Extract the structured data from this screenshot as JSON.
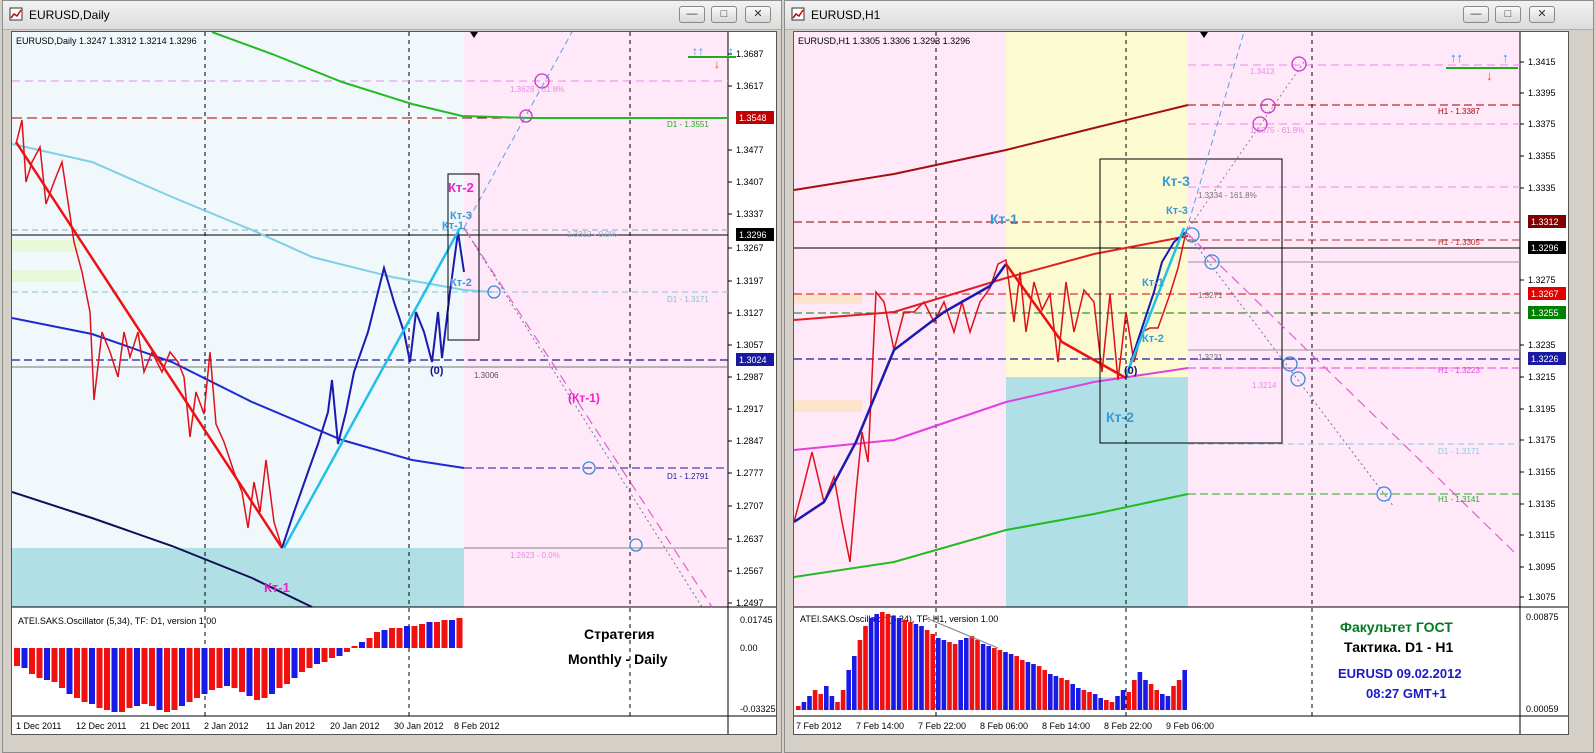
{
  "left": {
    "window_title": "EURUSD,Daily",
    "header": "EURUSD,Daily  1.3247 1.3312 1.3214 1.3296",
    "osc_title": "ATEI.SAKS.Oscillator (5,34), TF: D1,  version 1.00",
    "osc_values": [
      "0.01745",
      "0.00",
      "-0.03325"
    ],
    "price_ticks": [
      "1.3687",
      "1.3617",
      "1.3548",
      "1.3477",
      "1.3407",
      "1.3337",
      "1.3296",
      "1.3267",
      "1.3197",
      "1.3127",
      "1.3057",
      "1.3024",
      "1.2987",
      "1.2917",
      "1.2847",
      "1.2777",
      "1.2707",
      "1.2637",
      "1.2567",
      "1.2497"
    ],
    "price_badges": {
      "red": "1.3548",
      "black": "1.3296",
      "blue": "1.3024"
    },
    "date_ticks": [
      "1 Dec 2011",
      "12 Dec 2011",
      "21 Dec 2011",
      "2 Jan 2012",
      "11 Jan 2012",
      "20 Jan 2012",
      "30 Jan 2012",
      "8 Feb 2012"
    ],
    "labels": {
      "d1_1": "D1 - 1.3551",
      "d1_2": "D1 - 1.3171",
      "d1_3": "D1 - 1.2791",
      "fib_top": "1.3628 - 61.8%",
      "fib_mid": "1.3312 - 0.0%",
      "fib_bot": "1.2623 - 0.0%",
      "low": "1.3006",
      "kt1": "Кт-1",
      "kt2": "Кт-2",
      "kt3": "Кт-3",
      "kt1b": "Кт-1",
      "kt2b": "Кт-2",
      "zero": "(0)",
      "kt1p": "(Кт-1)",
      "strategy1": "Стратегия",
      "strategy2": "Monthly - Daily"
    }
  },
  "right": {
    "window_title": "EURUSD,H1",
    "header": "EURUSD,H1  1.3305 1.3306 1.3293 1.3296",
    "osc_title": "ATEI.SAKS.Oscillator (5,34), TF: H1,  version 1.00",
    "osc_values": [
      "0.00875",
      "0.00059"
    ],
    "price_ticks": [
      "1.3415",
      "1.3395",
      "1.3375",
      "1.3355",
      "1.3335",
      "1.3312",
      "1.3296",
      "1.3275",
      "1.3267",
      "1.3255",
      "1.3235",
      "1.3226",
      "1.3215",
      "1.3195",
      "1.3175",
      "1.3155",
      "1.3135",
      "1.3115",
      "1.3095",
      "1.3075"
    ],
    "price_badges": {
      "darkred": "1.3312",
      "black": "1.3296",
      "red": "1.3267",
      "green": "1.3255",
      "blue": "1.3226"
    },
    "date_ticks": [
      "7 Feb 2012",
      "7 Feb 14:00",
      "7 Feb 22:00",
      "8 Feb 06:00",
      "8 Feb 14:00",
      "8 Feb 22:00",
      "9 Feb 06:00"
    ],
    "labels": {
      "h1_1": "H1 - 1.3387",
      "h1_2": "H1 - 1.3305",
      "h1_3": "H1 - 1.3223",
      "d1_4": "D1 - 1.3171",
      "h1_4": "H1 - 1.3141",
      "fib_1": "1.3413",
      "fib_2": "1.3375 - 61.8%",
      "fib_3": "1.3334 - 161.8%",
      "fib_4": "1.3271",
      "fib_5": "1.3231",
      "fib_6": "1.3214",
      "kt1": "Кт-1",
      "kt2": "Кт-2",
      "kt3": "Кт-3",
      "kt1b": "Кт-1",
      "kt2b": "Кт-2",
      "kt3b": "Кт-3",
      "zero": "(0)",
      "gost1": "Факультет ГОСТ",
      "gost2": "Тактика. D1 - H1",
      "gost3": "EURUSD 09.02.2012",
      "gost4": "08:27 GMT+1"
    }
  },
  "colors": {
    "bg_blue": "#f0f8fc",
    "bg_pink": "#ffe8f8",
    "bg_yellow": "#fbfad0",
    "teal": "#b0e0e6"
  }
}
